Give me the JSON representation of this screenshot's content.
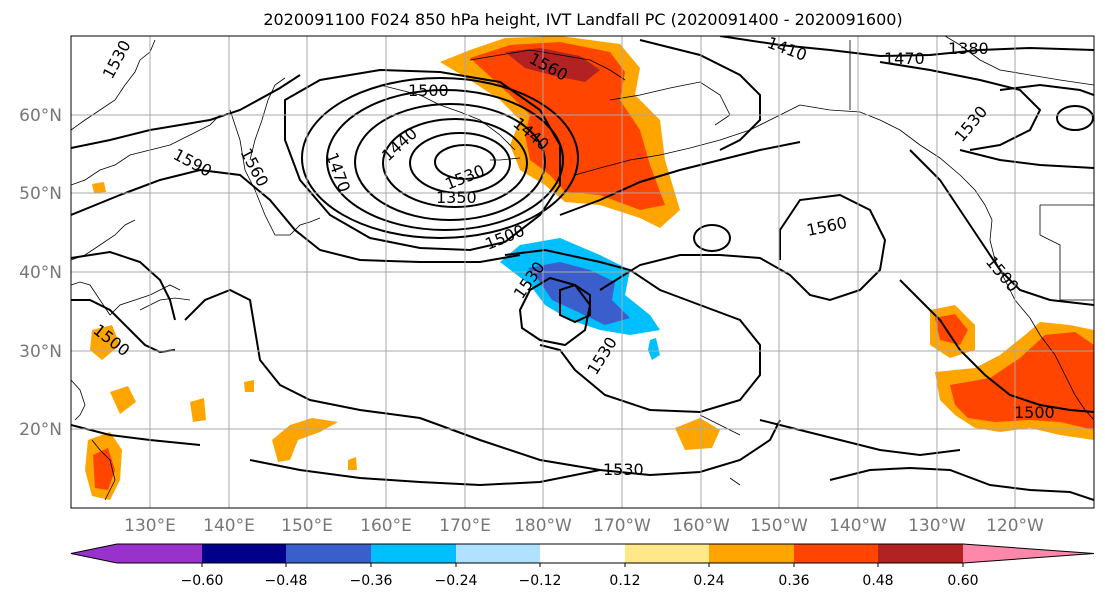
{
  "title": "2020091100 F024 850 hPa height, IVT Landfall PC (2020091400 - 2020091600)",
  "lat_labels": [
    "60°N",
    "50°N",
    "40°N",
    "30°N",
    "20°N"
  ],
  "lon_labels": [
    "130°E",
    "140°E",
    "150°E",
    "160°E",
    "170°E",
    "180°W",
    "170°W",
    "160°W",
    "150°W",
    "140°W",
    "130°W",
    "120°W"
  ],
  "contour_labels": [
    "1530",
    "1500",
    "1560",
    "1590",
    "1470",
    "1440",
    "1560",
    "1440",
    "1410",
    "1470",
    "1380",
    "1350",
    "1530",
    "1530",
    "1500",
    "1560",
    "1530",
    "1500",
    "1500",
    "1530",
    "1500"
  ],
  "colorbar": {
    "tick_labels": [
      "−0.60",
      "−0.48",
      "−0.36",
      "−0.24",
      "−0.12",
      "0.12",
      "0.24",
      "0.36",
      "0.48",
      "0.60"
    ],
    "colors": [
      "#9932cc",
      "#00008b",
      "#3a5fcd",
      "#00bfff",
      "#b0e2ff",
      "#ffffff",
      "#ffe88a",
      "#ffa500",
      "#ff4500",
      "#b22222",
      "#ff88aa"
    ]
  }
}
